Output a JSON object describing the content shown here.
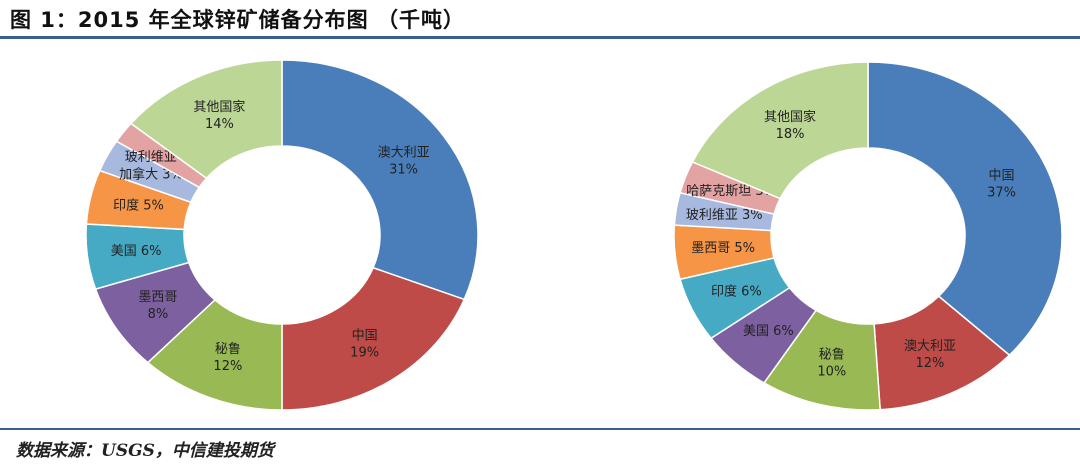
{
  "title": "图 1：2015 年全球锌矿储备分布图 （千吨）",
  "source": "数据来源：USGS，中信建投期货",
  "chart_data": [
    {
      "type": "pie",
      "variant": "donut",
      "categories": [
        "澳大利亚",
        "中国",
        "秘鲁",
        "墨西哥",
        "美国",
        "印度",
        "加拿大",
        "玻利维亚",
        "其他国家"
      ],
      "values": [
        31,
        19,
        12,
        8,
        6,
        5,
        3,
        2,
        14
      ],
      "unit": "%",
      "colors": [
        "#4a7ebb",
        "#be4b48",
        "#98b954",
        "#7d60a0",
        "#46aac5",
        "#f69546",
        "#a7b9df",
        "#e3a3a3",
        "#bcd695"
      ],
      "legend": "none"
    },
    {
      "type": "pie",
      "variant": "donut",
      "categories": [
        "中国",
        "澳大利亚",
        "秘鲁",
        "美国",
        "印度",
        "墨西哥",
        "玻利维亚",
        "哈萨克斯坦",
        "其他国家"
      ],
      "values": [
        37,
        12,
        10,
        6,
        6,
        5,
        3,
        3,
        18
      ],
      "unit": "%",
      "colors": [
        "#4a7ebb",
        "#be4b48",
        "#98b954",
        "#7d60a0",
        "#46aac5",
        "#f69546",
        "#a7b9df",
        "#e3a3a3",
        "#bcd695"
      ],
      "legend": "none"
    }
  ]
}
